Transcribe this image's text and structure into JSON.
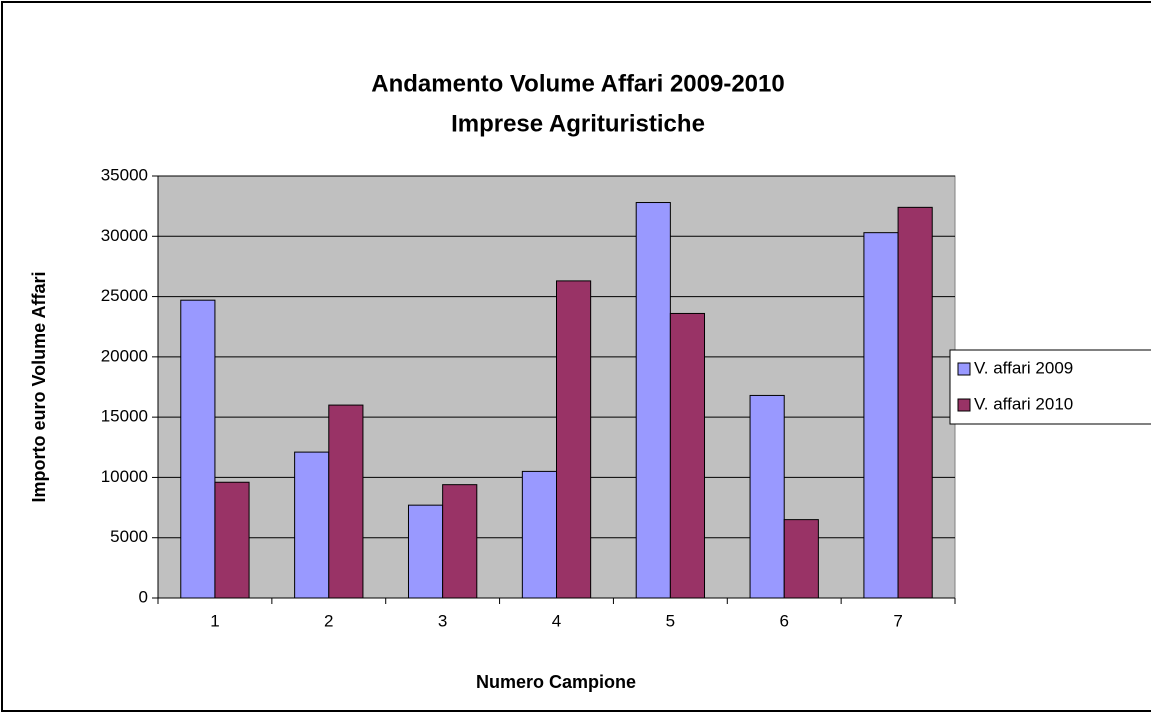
{
  "chart_data": {
    "type": "bar",
    "title": [
      "Andamento Volume Affari 2009-2010",
      "Imprese Agrituristiche"
    ],
    "x_label": "Numero Campione",
    "y_label": "Importo euro Volume Affari",
    "categories": [
      "1",
      "2",
      "3",
      "4",
      "5",
      "6",
      "7"
    ],
    "series": [
      {
        "name": "V. affari 2009",
        "color": "#9999ff",
        "values": [
          24700,
          12100,
          7700,
          10500,
          32800,
          16800,
          30300
        ]
      },
      {
        "name": "V. affari 2010",
        "color": "#993366",
        "values": [
          9600,
          16000,
          9400,
          26300,
          23600,
          6500,
          32400
        ]
      }
    ],
    "ylim": [
      0,
      35000
    ],
    "yticks": [
      0,
      5000,
      10000,
      15000,
      20000,
      25000,
      30000,
      35000
    ],
    "grid": true,
    "plot_background": "#c0c0c0",
    "legend": "right"
  }
}
